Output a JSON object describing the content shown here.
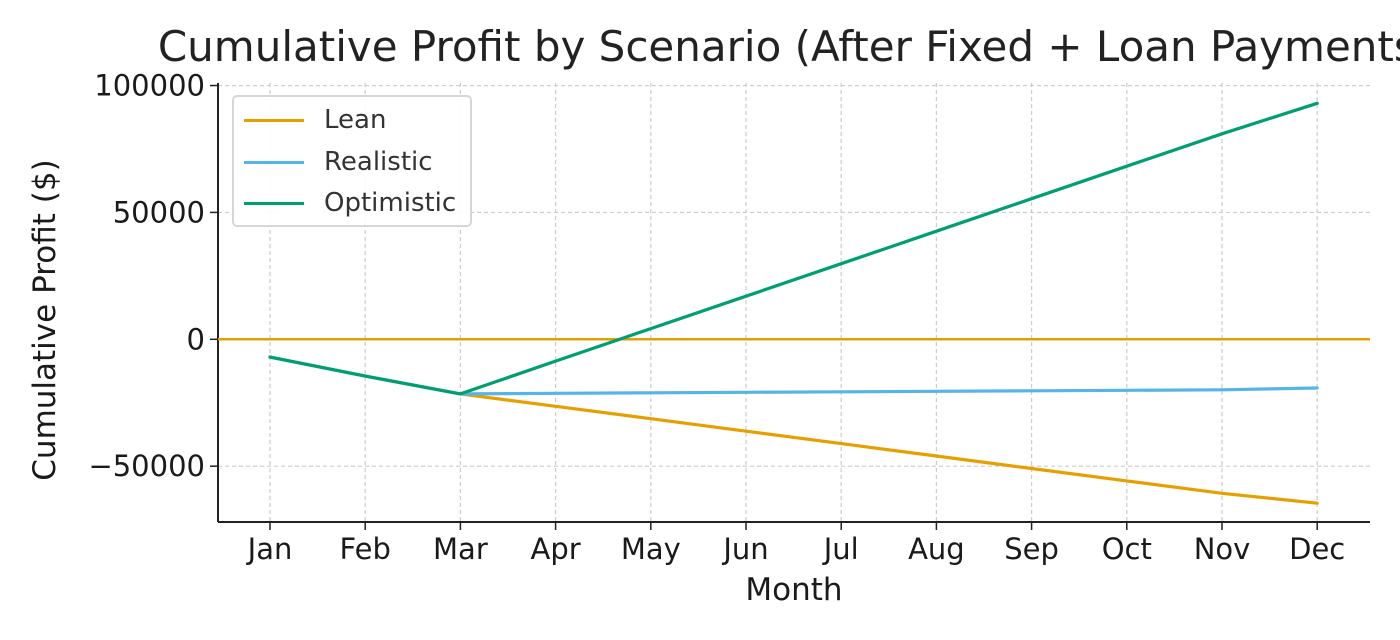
{
  "chart_data": {
    "type": "line",
    "title": "Cumulative Profit by Scenario (After Fixed + Loan Payments)",
    "xlabel": "Month",
    "ylabel": "Cumulative Profit ($)",
    "categories": [
      "Jan",
      "Feb",
      "Mar",
      "Apr",
      "May",
      "Jun",
      "Jul",
      "Aug",
      "Sep",
      "Oct",
      "Nov",
      "Dec"
    ],
    "ylim": [
      -72000,
      101000
    ],
    "yticks": [
      -50000,
      0,
      50000,
      100000
    ],
    "ytick_labels": [
      "−50000",
      "0",
      "50000",
      "100000"
    ],
    "grid": true,
    "legend_position": "top-left",
    "series": [
      {
        "name": "Lean",
        "color": "#E69F00",
        "values": [
          -7000,
          -14500,
          -21500,
          -26400,
          -31300,
          -36200,
          -41100,
          -46000,
          -50900,
          -55800,
          -60700,
          -64600
        ]
      },
      {
        "name": "Realistic",
        "color": "#56B4E9",
        "values": [
          -7000,
          -14500,
          -21500,
          -21300,
          -21100,
          -20900,
          -20700,
          -20500,
          -20300,
          -20100,
          -19900,
          -19200
        ]
      },
      {
        "name": "Optimistic",
        "color": "#009E73",
        "values": [
          -7000,
          -14500,
          -21500,
          -8600,
          4200,
          17000,
          29800,
          42600,
          55400,
          68200,
          81000,
          93000
        ]
      }
    ],
    "reference_line": {
      "y": 0,
      "color": "#E69F00"
    }
  }
}
